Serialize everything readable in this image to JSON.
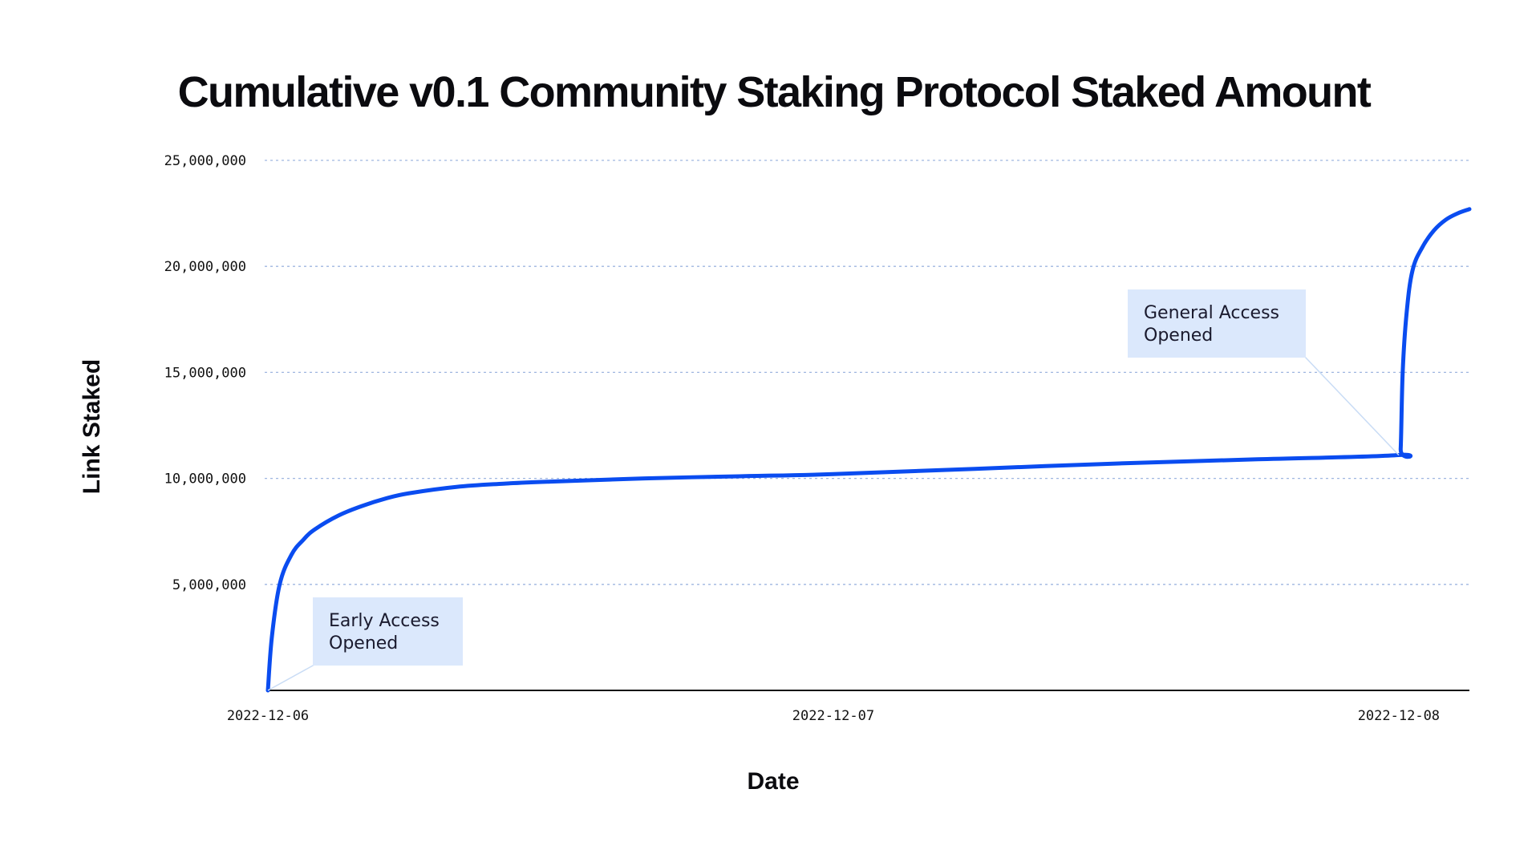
{
  "chart_data": {
    "type": "line",
    "title": "Cumulative v0.1 Community Staking Protocol Staked Amount",
    "xlabel": "Date",
    "ylabel": "Link Staked",
    "x_ticks": [
      "2022-12-06",
      "2022-12-07",
      "2022-12-08"
    ],
    "y_ticks": [
      "5,000,000",
      "10,000,000",
      "15,000,000",
      "20,000,000",
      "25,000,000"
    ],
    "y_tick_values": [
      5000000,
      10000000,
      15000000,
      20000000,
      25000000
    ],
    "ylim": [
      0,
      25000000
    ],
    "xlim": [
      "2022-12-06 00:00",
      "2022-12-08 03:00"
    ],
    "grid": "horizontal dotted",
    "series": [
      {
        "color": "#0a4cf0",
        "x": [
          "2022-12-06 00:00",
          "2022-12-06 00:10",
          "2022-12-06 00:30",
          "2022-12-06 01:00",
          "2022-12-06 01:30",
          "2022-12-06 02:00",
          "2022-12-06 03:00",
          "2022-12-06 04:00",
          "2022-12-06 05:00",
          "2022-12-06 06:00",
          "2022-12-06 08:00",
          "2022-12-06 10:00",
          "2022-12-06 12:00",
          "2022-12-06 16:00",
          "2022-12-06 20:00",
          "2022-12-07 00:00",
          "2022-12-07 06:00",
          "2022-12-07 12:00",
          "2022-12-07 18:00",
          "2022-12-08 00:00",
          "2022-12-08 00:05",
          "2022-12-08 00:10",
          "2022-12-08 00:20",
          "2022-12-08 00:35",
          "2022-12-08 01:00",
          "2022-12-08 01:30",
          "2022-12-08 02:00",
          "2022-12-08 02:30",
          "2022-12-08 03:00"
        ],
        "values": [
          0,
          2500000,
          5000000,
          6400000,
          7100000,
          7600000,
          8250000,
          8700000,
          9050000,
          9300000,
          9600000,
          9750000,
          9850000,
          10000000,
          10100000,
          10200000,
          10450000,
          10700000,
          10900000,
          11100000,
          11400000,
          15000000,
          17800000,
          19800000,
          20900000,
          21700000,
          22200000,
          22500000,
          22700000
        ]
      }
    ],
    "annotations": [
      {
        "text_lines": [
          "Early Access",
          "Opened"
        ],
        "points_to": {
          "x": "2022-12-06 00:00",
          "y": 0
        }
      },
      {
        "text_lines": [
          "General Access",
          "Opened"
        ],
        "points_to": {
          "x": "2022-12-08 00:00",
          "y": 11100000
        }
      }
    ],
    "colors": {
      "line": "#0a4cf0",
      "grid": "#9fb6e0",
      "annotation_bg": "#dbe8fc",
      "axis": "#111111"
    }
  }
}
